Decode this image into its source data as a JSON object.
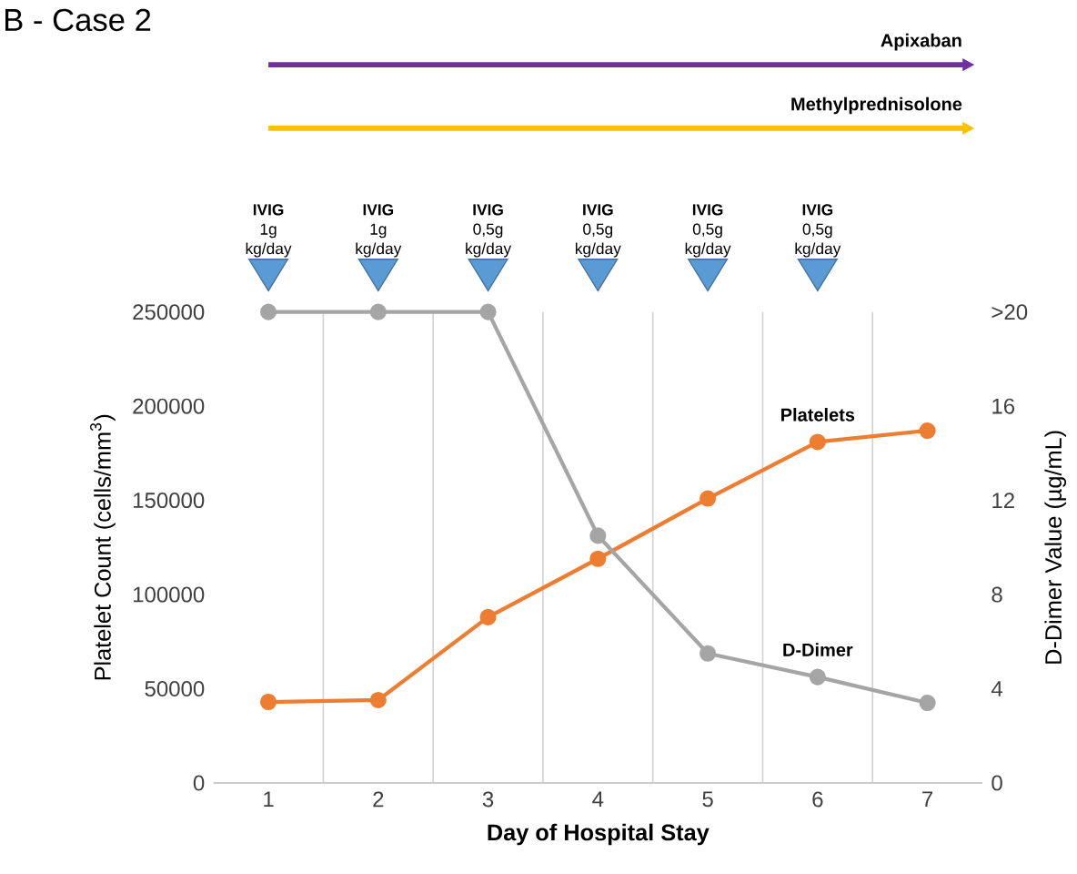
{
  "chart_data": {
    "type": "line",
    "title": "B - Case 2",
    "xlabel": "Day of Hospital Stay",
    "ylabel": "Platelet Count (cells/mm$^{3}$)",
    "y2label": "D-Dimer Value (µg/mL)",
    "categories": [
      "1",
      "2",
      "3",
      "4",
      "5",
      "6",
      "7"
    ],
    "series": [
      {
        "name": "Platelets",
        "color": "#ed7d31",
        "values": [
          43000,
          44000,
          88000,
          119000,
          151000,
          181000,
          187000
        ]
      },
      {
        "name": "D-Dimer",
        "color": "#a5a5a5",
        "axis": "y2",
        "values": [
          20,
          20,
          20,
          10.5,
          5.5,
          4.5,
          3.4
        ]
      }
    ],
    "ylim": [
      0,
      250000
    ],
    "yticks": [
      0,
      50000,
      100000,
      150000,
      200000,
      250000
    ],
    "y2lim": [
      0,
      20
    ],
    "y2ticks": [
      0,
      4,
      8,
      12,
      16,
      {
        "value": 20,
        "label": ">20"
      }
    ],
    "grid": "x",
    "legend": false,
    "marker": "circle",
    "line_style": "solid",
    "annotations": [
      "Apixaban",
      "Methylprednisolone",
      "**IVIG** 1g kg/day",
      "**IVIG** 1g kg/day",
      "**IVIG** 0,5g kg/day",
      "**IVIG** 0,5g kg/day",
      "**IVIG** 0,5g kg/day",
      "**IVIG** 0,5g kg/day"
    ]
  }
}
